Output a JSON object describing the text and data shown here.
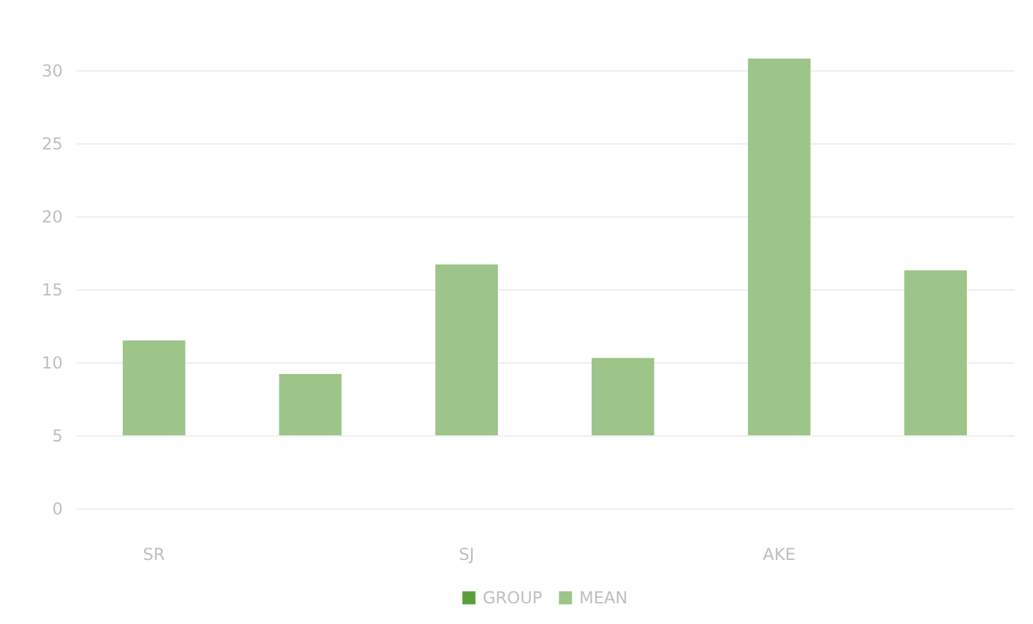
{
  "chart_data": {
    "type": "bar",
    "categories": [
      "SR",
      null,
      "SJ",
      null,
      "AKE",
      null
    ],
    "series": [
      {
        "name": "GROUP",
        "color": "#5b9f3c",
        "values": [
          null,
          null,
          null,
          null,
          null,
          null
        ]
      },
      {
        "name": "MEAN",
        "color": "#9dc489",
        "values": [
          6.5,
          4.2,
          11.7,
          5.3,
          25.8,
          11.3
        ],
        "base": [
          5,
          5,
          5,
          5,
          5,
          5
        ]
      }
    ],
    "ylim": [
      0,
      30
    ],
    "yticks": [
      0,
      5,
      10,
      15,
      20,
      25,
      30
    ],
    "grid": "y",
    "legend": "bottom"
  }
}
